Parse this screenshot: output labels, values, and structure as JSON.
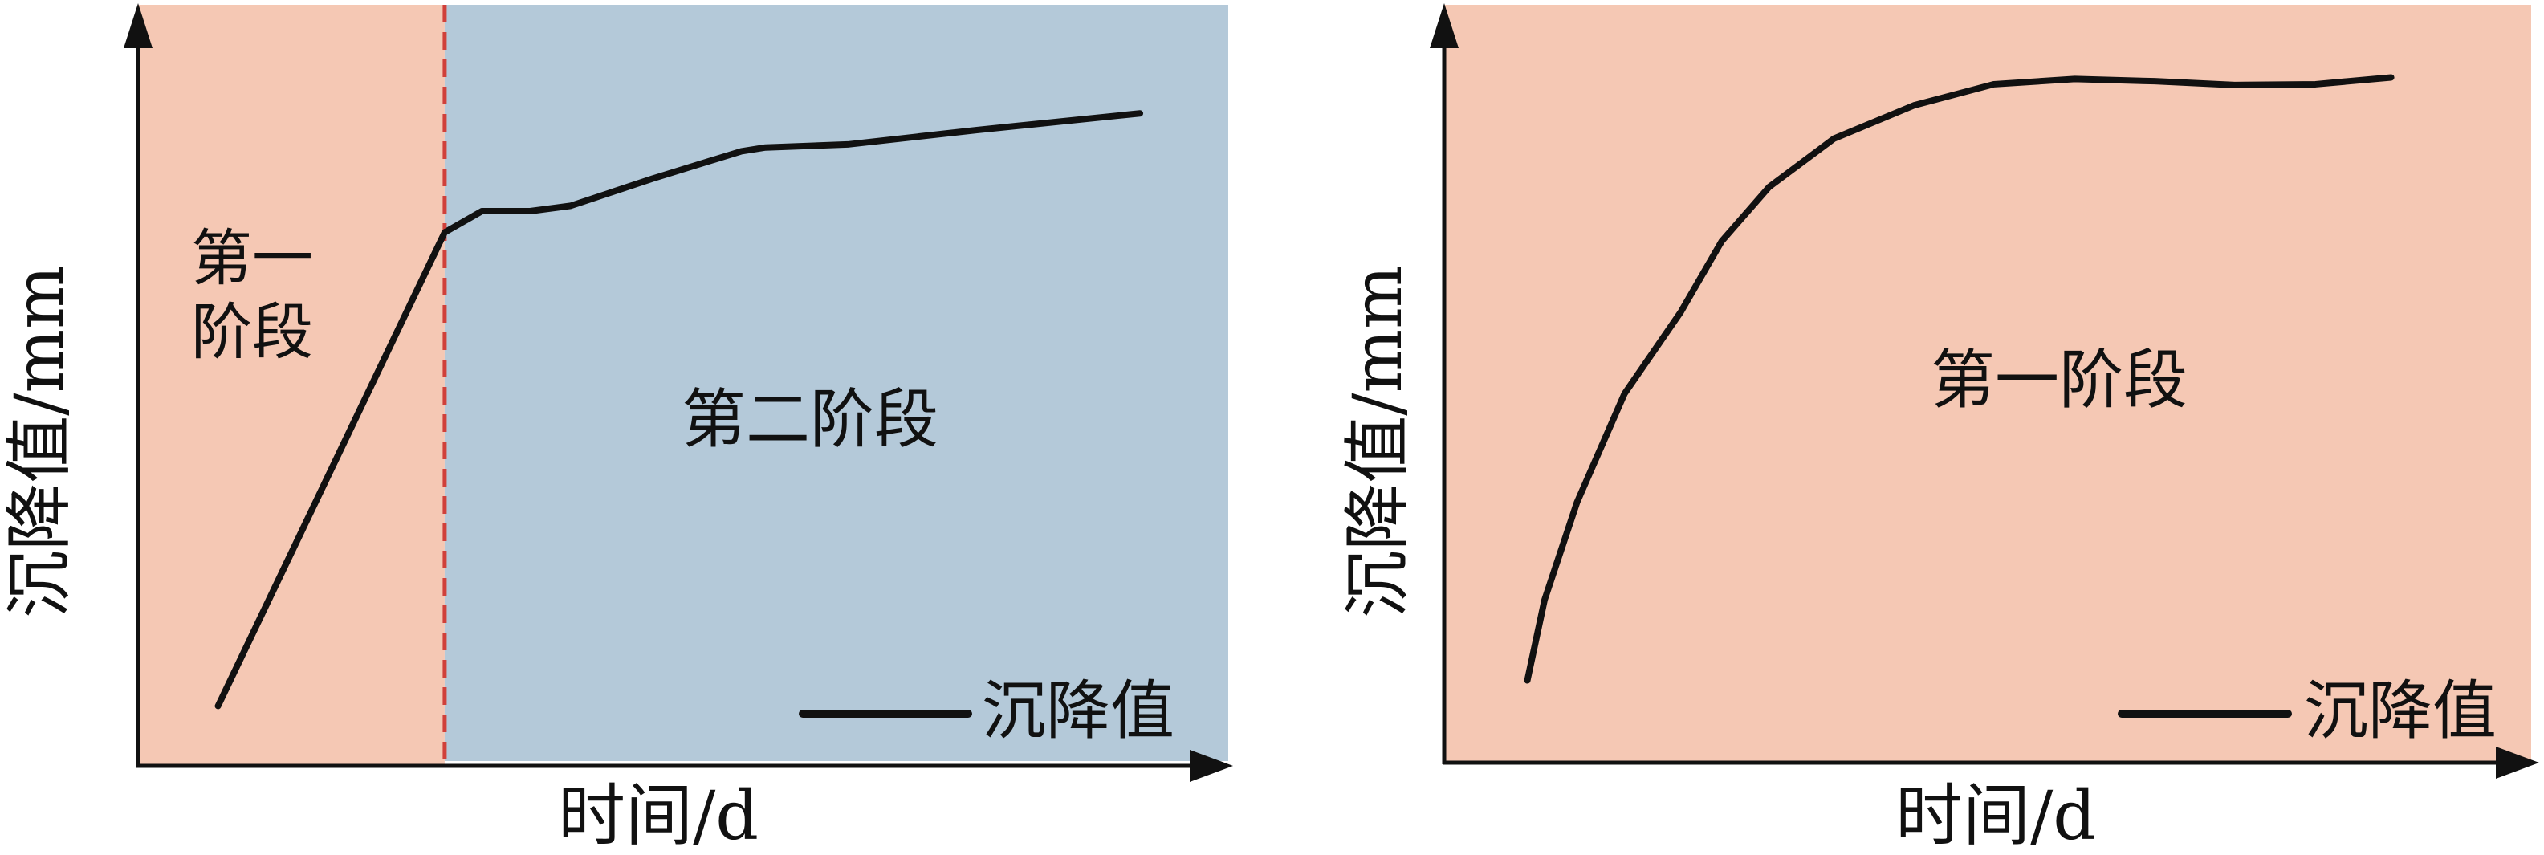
{
  "chart_data": [
    {
      "type": "line",
      "xlabel": "时间/d",
      "ylabel": "沉降值/mm",
      "xlim": [
        0,
        100
      ],
      "ylim": [
        0,
        100
      ],
      "grid": false,
      "legend_placement": "bottom-right",
      "legend": [
        "沉降值"
      ],
      "region_labels": [
        "第一阶段",
        "第二阶段"
      ],
      "region_label_lines": [
        [
          "第一",
          "阶段"
        ],
        [
          "第二阶段"
        ]
      ],
      "stage_divider_x": 28,
      "region_colors": [
        "#f5c8b4",
        "#b4c9d9"
      ],
      "divider_color": "#d0403a",
      "series": [
        {
          "name": "沉降值",
          "color": "#111111",
          "x": [
            7.3,
            28,
            31.4,
            35.8,
            39.5,
            47,
            55.1,
            57.3,
            64.8,
            76.6,
            91.5
          ],
          "y": [
            7.9,
            70.4,
            73.2,
            73.2,
            73.9,
            77.5,
            81.1,
            81.6,
            82,
            83.9,
            86.1
          ]
        }
      ]
    },
    {
      "type": "line",
      "xlabel": "时间/d",
      "ylabel": "沉降值/mm",
      "xlim": [
        0,
        100
      ],
      "ylim": [
        0,
        100
      ],
      "grid": false,
      "legend_placement": "bottom-right",
      "legend": [
        "沉降值"
      ],
      "region_labels": [
        "第一阶段"
      ],
      "region_colors": [
        "#f5c8b4"
      ],
      "series": [
        {
          "name": "沉降值",
          "color": "#111111",
          "x": [
            7.7,
            9.3,
            12.3,
            16.7,
            21.9,
            25.7,
            30.1,
            36.1,
            43.5,
            50.9,
            58.4,
            65.8,
            73.2,
            80.7,
            87.7
          ],
          "y": [
            10.9,
            21.6,
            34.5,
            48.9,
            59.7,
            69.1,
            76.3,
            82.7,
            87.1,
            89.9,
            90.6,
            90.3,
            89.8,
            89.9,
            90.8
          ]
        }
      ]
    }
  ]
}
